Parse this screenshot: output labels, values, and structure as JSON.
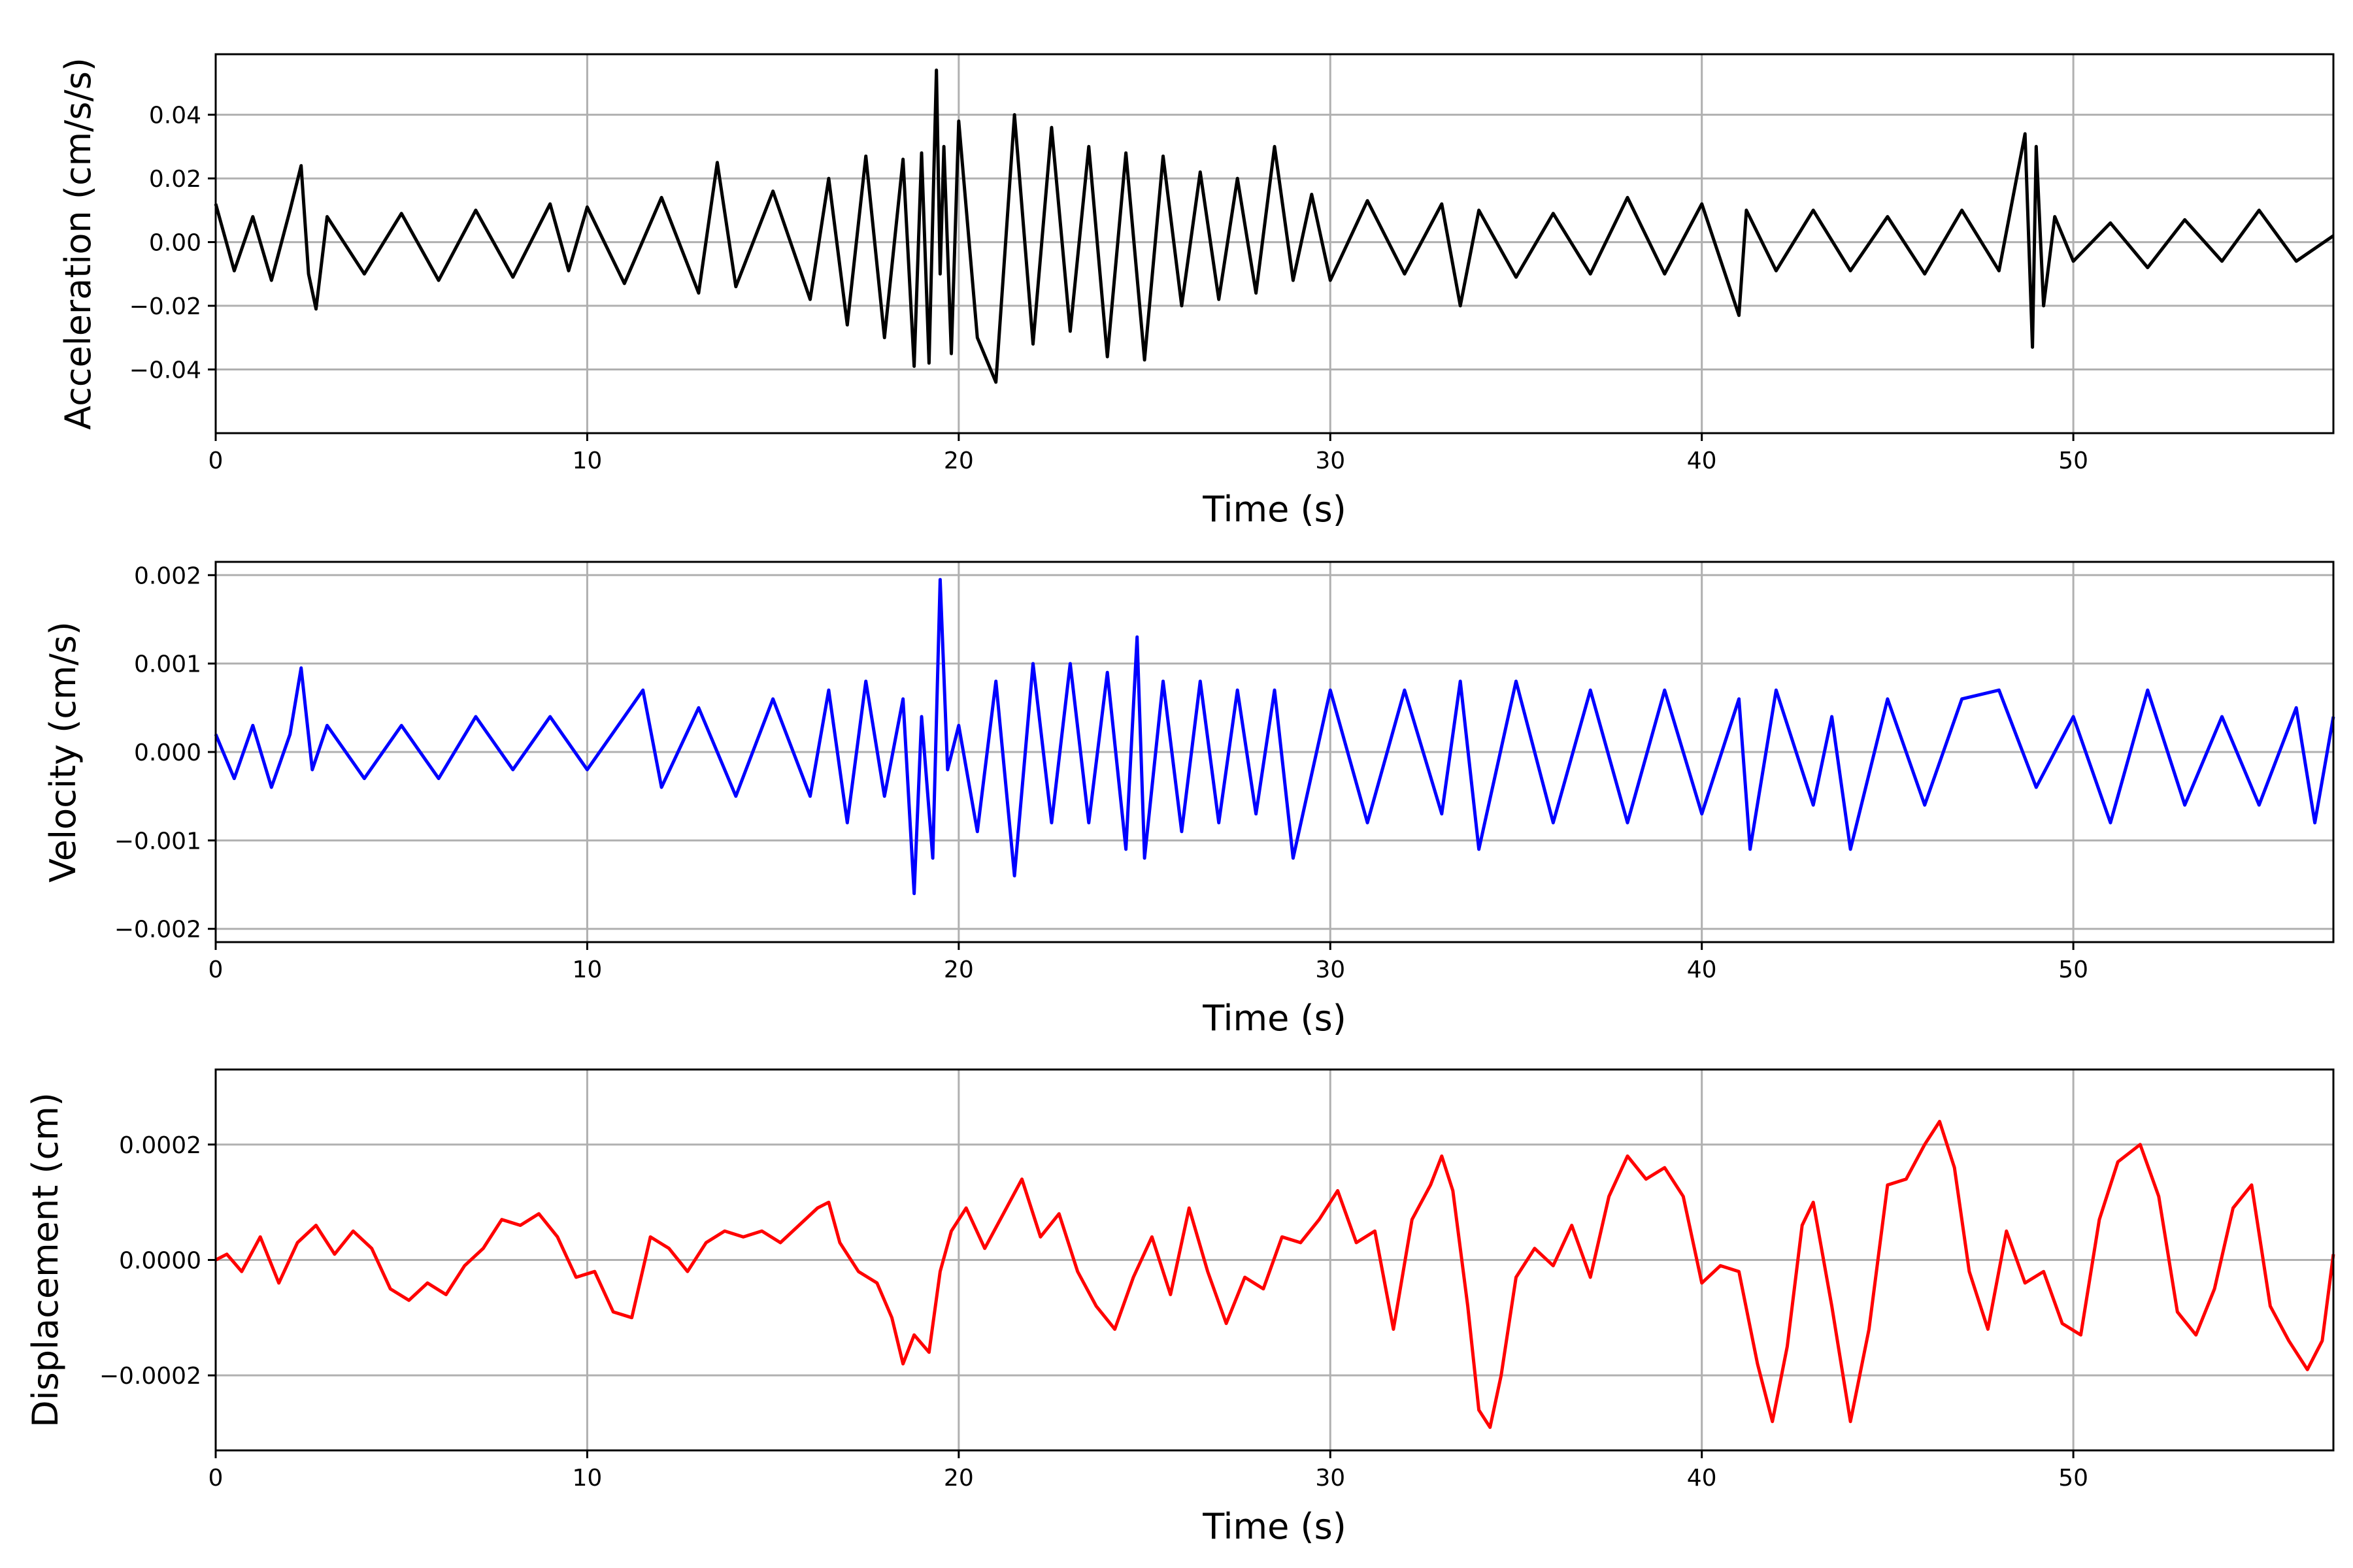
{
  "chart_data": [
    {
      "type": "line",
      "color": "#000000",
      "xlabel": "Time (s)",
      "ylabel": "Acceleration (cm/s/s)",
      "xlim": [
        0,
        57
      ],
      "ylim": [
        -0.06,
        0.059
      ],
      "xticks": [
        0,
        10,
        20,
        30,
        40,
        50
      ],
      "xtick_labels": [
        "0",
        "10",
        "20",
        "30",
        "40",
        "50"
      ],
      "yticks": [
        -0.04,
        -0.02,
        0.0,
        0.02,
        0.04
      ],
      "ytick_labels": [
        "−0.04",
        "−0.02",
        "0.00",
        "0.02",
        "0.04"
      ],
      "grid": true,
      "series": [
        {
          "x": [
            0,
            0.5,
            1,
            1.5,
            2,
            2.3,
            2.5,
            2.7,
            3,
            4,
            5,
            6,
            7,
            8,
            9,
            9.5,
            10,
            11,
            12,
            13,
            13.5,
            14,
            15,
            16,
            16.5,
            17,
            17.5,
            18,
            18.5,
            18.8,
            19,
            19.2,
            19.4,
            19.5,
            19.6,
            19.8,
            20,
            20.5,
            21,
            21.5,
            22,
            22.5,
            23,
            23.5,
            24,
            24.5,
            25,
            25.5,
            26,
            26.5,
            27,
            27.5,
            28,
            28.5,
            29,
            29.5,
            30,
            31,
            32,
            33,
            33.5,
            34,
            35,
            36,
            37,
            38,
            39,
            40,
            41,
            41.2,
            42,
            43,
            44,
            45,
            46,
            47,
            48,
            48.7,
            48.9,
            49,
            49.2,
            49.5,
            50,
            51,
            52,
            53,
            54,
            55,
            56,
            57
          ],
          "y": [
            0.012,
            -0.009,
            0.008,
            -0.012,
            0.01,
            0.024,
            -0.01,
            -0.021,
            0.008,
            -0.01,
            0.009,
            -0.012,
            0.01,
            -0.011,
            0.012,
            -0.009,
            0.011,
            -0.013,
            0.014,
            -0.016,
            0.025,
            -0.014,
            0.016,
            -0.018,
            0.02,
            -0.026,
            0.027,
            -0.03,
            0.026,
            -0.039,
            0.028,
            -0.038,
            0.054,
            -0.01,
            0.03,
            -0.035,
            0.038,
            -0.03,
            -0.044,
            0.04,
            -0.032,
            0.036,
            -0.028,
            0.03,
            -0.036,
            0.028,
            -0.037,
            0.027,
            -0.02,
            0.022,
            -0.018,
            0.02,
            -0.016,
            0.03,
            -0.012,
            0.015,
            -0.012,
            0.013,
            -0.01,
            0.012,
            -0.02,
            0.01,
            -0.011,
            0.009,
            -0.01,
            0.014,
            -0.01,
            0.012,
            -0.023,
            0.01,
            -0.009,
            0.01,
            -0.009,
            0.008,
            -0.01,
            0.01,
            -0.009,
            0.034,
            -0.033,
            0.03,
            -0.02,
            0.008,
            -0.006,
            0.006,
            -0.008,
            0.007,
            -0.006,
            0.01,
            -0.006,
            0.002
          ]
        }
      ]
    },
    {
      "type": "line",
      "color": "#0000ff",
      "xlabel": "Time (s)",
      "ylabel": "Velocity (cm/s)",
      "xlim": [
        0,
        57
      ],
      "ylim": [
        -0.00215,
        0.00215
      ],
      "xticks": [
        0,
        10,
        20,
        30,
        40,
        50
      ],
      "xtick_labels": [
        "0",
        "10",
        "20",
        "30",
        "40",
        "50"
      ],
      "yticks": [
        -0.002,
        -0.001,
        0.0,
        0.001,
        0.002
      ],
      "ytick_labels": [
        "−0.002",
        "−0.001",
        "0.000",
        "0.001",
        "0.002"
      ],
      "grid": true,
      "series": [
        {
          "x": [
            0,
            0.5,
            1,
            1.5,
            2,
            2.3,
            2.6,
            3,
            4,
            5,
            6,
            7,
            8,
            9,
            10,
            11,
            11.5,
            12,
            13,
            14,
            15,
            16,
            16.5,
            17,
            17.5,
            18,
            18.5,
            18.8,
            19,
            19.3,
            19.5,
            19.7,
            20,
            20.5,
            21,
            21.5,
            22,
            22.5,
            23,
            23.5,
            24,
            24.5,
            24.8,
            25,
            25.5,
            26,
            26.5,
            27,
            27.5,
            28,
            28.5,
            29,
            30,
            31,
            32,
            33,
            33.5,
            34,
            35,
            36,
            37,
            38,
            39,
            40,
            41,
            41.3,
            42,
            43,
            43.5,
            44,
            45,
            46,
            47,
            48,
            49,
            50,
            51,
            52,
            53,
            54,
            55,
            56,
            56.5,
            57
          ],
          "y": [
            0.0002,
            -0.0003,
            0.0003,
            -0.0004,
            0.0002,
            0.00095,
            -0.0002,
            0.0003,
            -0.0003,
            0.0003,
            -0.0003,
            0.0004,
            -0.0002,
            0.0004,
            -0.0002,
            0.0004,
            0.0007,
            -0.0004,
            0.0005,
            -0.0005,
            0.0006,
            -0.0005,
            0.0007,
            -0.0008,
            0.0008,
            -0.0005,
            0.0006,
            -0.0016,
            0.0004,
            -0.0012,
            0.00195,
            -0.0002,
            0.0003,
            -0.0009,
            0.0008,
            -0.0014,
            0.001,
            -0.0008,
            0.001,
            -0.0008,
            0.0009,
            -0.0011,
            0.0013,
            -0.0012,
            0.0008,
            -0.0009,
            0.0008,
            -0.0008,
            0.0007,
            -0.0007,
            0.0007,
            -0.0012,
            0.0007,
            -0.0008,
            0.0007,
            -0.0007,
            0.0008,
            -0.0011,
            0.0008,
            -0.0008,
            0.0007,
            -0.0008,
            0.0007,
            -0.0007,
            0.0006,
            -0.0011,
            0.0007,
            -0.0006,
            0.0004,
            -0.0011,
            0.0006,
            -0.0006,
            0.0006,
            0.0007,
            -0.0004,
            0.0004,
            -0.0008,
            0.0007,
            -0.0006,
            0.0004,
            -0.0006,
            0.0005,
            -0.0008,
            0.0004
          ]
        }
      ]
    },
    {
      "type": "line",
      "color": "#ff0000",
      "xlabel": "Time (s)",
      "ylabel": "Displacement (cm)",
      "xlim": [
        0,
        57
      ],
      "ylim": [
        -0.00033,
        0.00033
      ],
      "xticks": [
        0,
        10,
        20,
        30,
        40,
        50
      ],
      "xtick_labels": [
        "0",
        "10",
        "20",
        "30",
        "40",
        "50"
      ],
      "yticks": [
        -0.0002,
        0.0,
        0.0002
      ],
      "ytick_labels": [
        "−0.0002",
        "0.0000",
        "0.0002"
      ],
      "grid": true,
      "series": [
        {
          "x": [
            0,
            0.3,
            0.7,
            1.2,
            1.7,
            2.2,
            2.7,
            3.2,
            3.7,
            4.2,
            4.7,
            5.2,
            5.7,
            6.2,
            6.7,
            7.2,
            7.7,
            8.2,
            8.7,
            9.2,
            9.7,
            10.2,
            10.7,
            11.2,
            11.7,
            12.2,
            12.7,
            13.2,
            13.7,
            14.2,
            14.7,
            15.2,
            15.7,
            16.2,
            16.5,
            16.8,
            17.3,
            17.8,
            18.2,
            18.5,
            18.8,
            19.2,
            19.5,
            19.8,
            20.2,
            20.7,
            21.2,
            21.7,
            22.2,
            22.7,
            23.2,
            23.7,
            24.2,
            24.7,
            25.2,
            25.7,
            26.2,
            26.7,
            27.2,
            27.7,
            28.2,
            28.7,
            29.2,
            29.7,
            30.2,
            30.7,
            31.2,
            31.7,
            32.2,
            32.7,
            33.0,
            33.3,
            33.7,
            34.0,
            34.3,
            34.6,
            35.0,
            35.5,
            36.0,
            36.5,
            37.0,
            37.5,
            38.0,
            38.5,
            39.0,
            39.5,
            40.0,
            40.5,
            41.0,
            41.5,
            41.9,
            42.3,
            42.7,
            43.0,
            43.5,
            44.0,
            44.5,
            45.0,
            45.5,
            46.0,
            46.4,
            46.8,
            47.2,
            47.7,
            48.2,
            48.7,
            49.2,
            49.7,
            50.2,
            50.7,
            51.2,
            51.8,
            52.3,
            52.8,
            53.3,
            53.8,
            54.3,
            54.8,
            55.3,
            55.8,
            56.3,
            56.7,
            57.0
          ],
          "y": [
            0.0,
            1e-05,
            -2e-05,
            4e-05,
            -4e-05,
            3e-05,
            6e-05,
            1e-05,
            5e-05,
            2e-05,
            -5e-05,
            -7e-05,
            -4e-05,
            -6e-05,
            -1e-05,
            2e-05,
            7e-05,
            6e-05,
            8e-05,
            4e-05,
            -3e-05,
            -2e-05,
            -9e-05,
            -0.0001,
            4e-05,
            2e-05,
            -2e-05,
            3e-05,
            5e-05,
            4e-05,
            5e-05,
            3e-05,
            6e-05,
            9e-05,
            0.0001,
            3e-05,
            -2e-05,
            -4e-05,
            -0.0001,
            -0.00018,
            -0.00013,
            -0.00016,
            -2e-05,
            5e-05,
            9e-05,
            2e-05,
            8e-05,
            0.00014,
            4e-05,
            8e-05,
            -2e-05,
            -8e-05,
            -0.00012,
            -3e-05,
            4e-05,
            -6e-05,
            9e-05,
            -2e-05,
            -0.00011,
            -3e-05,
            -5e-05,
            4e-05,
            3e-05,
            7e-05,
            0.00012,
            3e-05,
            5e-05,
            -0.00012,
            7e-05,
            0.00013,
            0.00018,
            0.00012,
            -8e-05,
            -0.00026,
            -0.00029,
            -0.0002,
            -3e-05,
            2e-05,
            -1e-05,
            6e-05,
            -3e-05,
            0.00011,
            0.00018,
            0.00014,
            0.00016,
            0.00011,
            -4e-05,
            -1e-05,
            -2e-05,
            -0.00018,
            -0.00028,
            -0.00015,
            6e-05,
            0.0001,
            -8e-05,
            -0.00028,
            -0.00012,
            0.00013,
            0.00014,
            0.0002,
            0.00024,
            0.00016,
            -2e-05,
            -0.00012,
            5e-05,
            -4e-05,
            -2e-05,
            -0.00011,
            -0.00013,
            7e-05,
            0.00017,
            0.0002,
            0.00011,
            -9e-05,
            -0.00013,
            -5e-05,
            9e-05,
            0.00013,
            -8e-05,
            -0.00014,
            -0.00019,
            -0.00014,
            1e-05
          ]
        }
      ]
    }
  ]
}
